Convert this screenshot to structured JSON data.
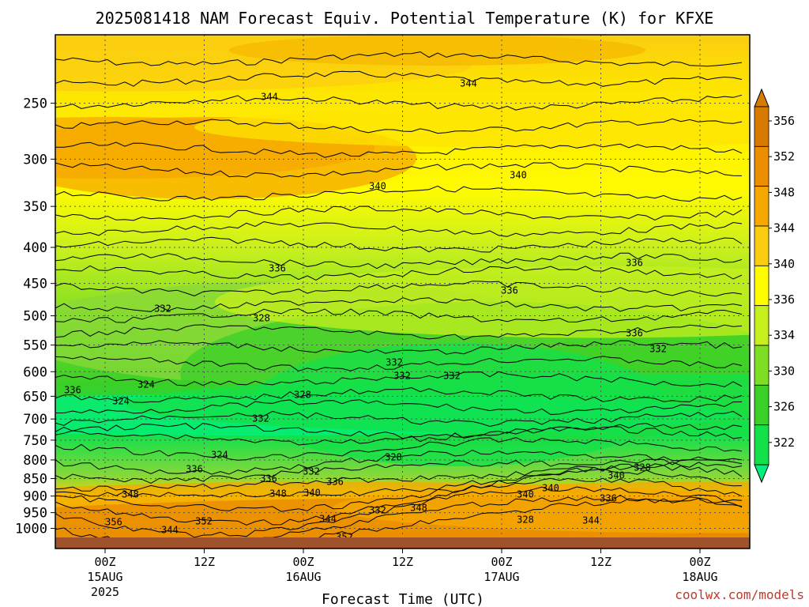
{
  "title": "2025081418 NAM Forecast Equiv. Potential Temperature (K) for KFXE",
  "credit": "coolwx.com/models",
  "chart_data": {
    "type": "heatmap",
    "title": "2025081418 NAM Forecast Equiv. Potential Temperature (K) for KFXE",
    "xlabel": "Forecast Time (UTC)",
    "ylabel": "",
    "units": "K",
    "x_ticks": [
      {
        "label": "00Z",
        "sub": "15AUG",
        "sub2": "2025"
      },
      {
        "label": "12Z",
        "sub": "",
        "sub2": ""
      },
      {
        "label": "00Z",
        "sub": "16AUG",
        "sub2": ""
      },
      {
        "label": "12Z",
        "sub": "",
        "sub2": ""
      },
      {
        "label": "00Z",
        "sub": "17AUG",
        "sub2": ""
      },
      {
        "label": "12Z",
        "sub": "",
        "sub2": ""
      },
      {
        "label": "00Z",
        "sub": "18AUG",
        "sub2": ""
      }
    ],
    "y_ticks": [
      "250",
      "300",
      "350",
      "400",
      "450",
      "500",
      "550",
      "600",
      "650",
      "700",
      "750",
      "800",
      "850",
      "900",
      "950",
      "1000"
    ],
    "y_scale": "log",
    "ylim_hpa": [
      1030,
      200
    ],
    "colorbar": {
      "levels": [
        "356",
        "352",
        "348",
        "344",
        "340",
        "336",
        "334",
        "330",
        "326",
        "322"
      ],
      "colors": [
        "#d97a00",
        "#eb8e00",
        "#f5a800",
        "#fbcd10",
        "#fffb00",
        "#c6ef1e",
        "#7ede23",
        "#3ad028",
        "#14e04a",
        "#00f07e"
      ]
    },
    "contour_labels": [
      "344",
      "344",
      "340",
      "340",
      "336",
      "336",
      "336",
      "336",
      "332",
      "332",
      "332",
      "332",
      "332",
      "332",
      "328",
      "328",
      "328",
      "328",
      "324",
      "324",
      "324",
      "336",
      "332",
      "336",
      "340",
      "344",
      "348",
      "340",
      "340",
      "336",
      "348",
      "340",
      "336",
      "332",
      "328",
      "356",
      "352",
      "344",
      "352",
      "344",
      "348",
      "336"
    ],
    "grid": true
  }
}
